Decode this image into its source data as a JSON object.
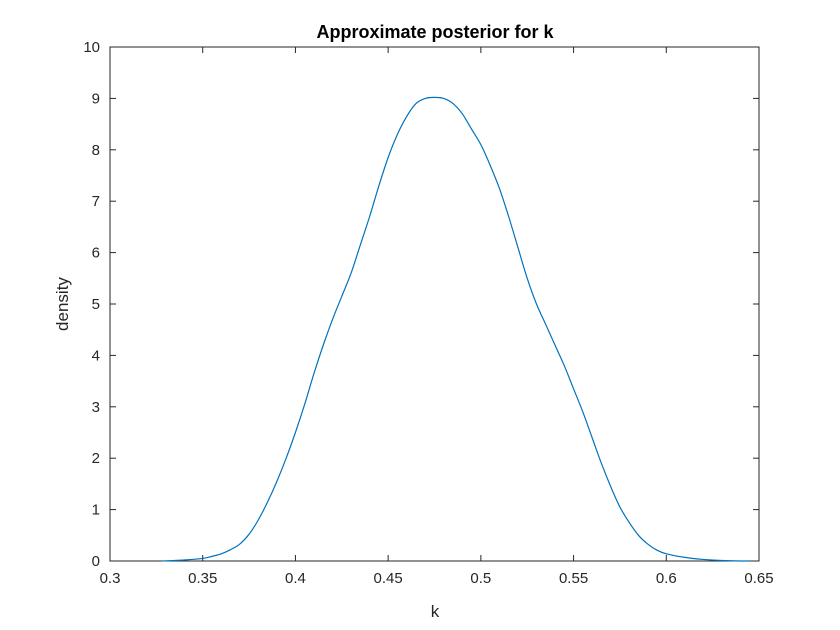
{
  "chart_data": {
    "type": "line",
    "title": "Approximate posterior for k",
    "xlabel": "k",
    "ylabel": "density",
    "xlim": [
      0.3,
      0.65
    ],
    "ylim": [
      0,
      10
    ],
    "xticks": [
      "0.3",
      "0.35",
      "0.4",
      "0.45",
      "0.5",
      "0.55",
      "0.6",
      "0.65"
    ],
    "yticks": [
      "0",
      "1",
      "2",
      "3",
      "4",
      "5",
      "6",
      "7",
      "8",
      "9",
      "10"
    ],
    "grid": false,
    "legend": "none",
    "line_color": "#0072BD",
    "series": [
      {
        "x": [
          0.328,
          0.34,
          0.35,
          0.355,
          0.36,
          0.365,
          0.37,
          0.375,
          0.38,
          0.385,
          0.39,
          0.395,
          0.4,
          0.405,
          0.41,
          0.415,
          0.42,
          0.425,
          0.43,
          0.435,
          0.44,
          0.445,
          0.45,
          0.455,
          0.46,
          0.465,
          0.47,
          0.475,
          0.48,
          0.485,
          0.49,
          0.495,
          0.5,
          0.505,
          0.51,
          0.515,
          0.52,
          0.525,
          0.53,
          0.535,
          0.54,
          0.545,
          0.55,
          0.555,
          0.56,
          0.565,
          0.57,
          0.575,
          0.58,
          0.585,
          0.59,
          0.595,
          0.6,
          0.61,
          0.62,
          0.63,
          0.64,
          0.645
        ],
        "y": [
          0.0,
          0.02,
          0.05,
          0.09,
          0.14,
          0.22,
          0.33,
          0.52,
          0.8,
          1.15,
          1.55,
          2.0,
          2.5,
          3.05,
          3.65,
          4.2,
          4.7,
          5.15,
          5.6,
          6.15,
          6.7,
          7.3,
          7.85,
          8.3,
          8.65,
          8.9,
          9.0,
          9.02,
          9.0,
          8.9,
          8.7,
          8.4,
          8.1,
          7.7,
          7.25,
          6.7,
          6.1,
          5.5,
          5.0,
          4.6,
          4.2,
          3.8,
          3.35,
          2.9,
          2.4,
          1.9,
          1.45,
          1.05,
          0.75,
          0.5,
          0.33,
          0.21,
          0.14,
          0.07,
          0.03,
          0.01,
          0.0,
          0.0
        ]
      }
    ]
  }
}
